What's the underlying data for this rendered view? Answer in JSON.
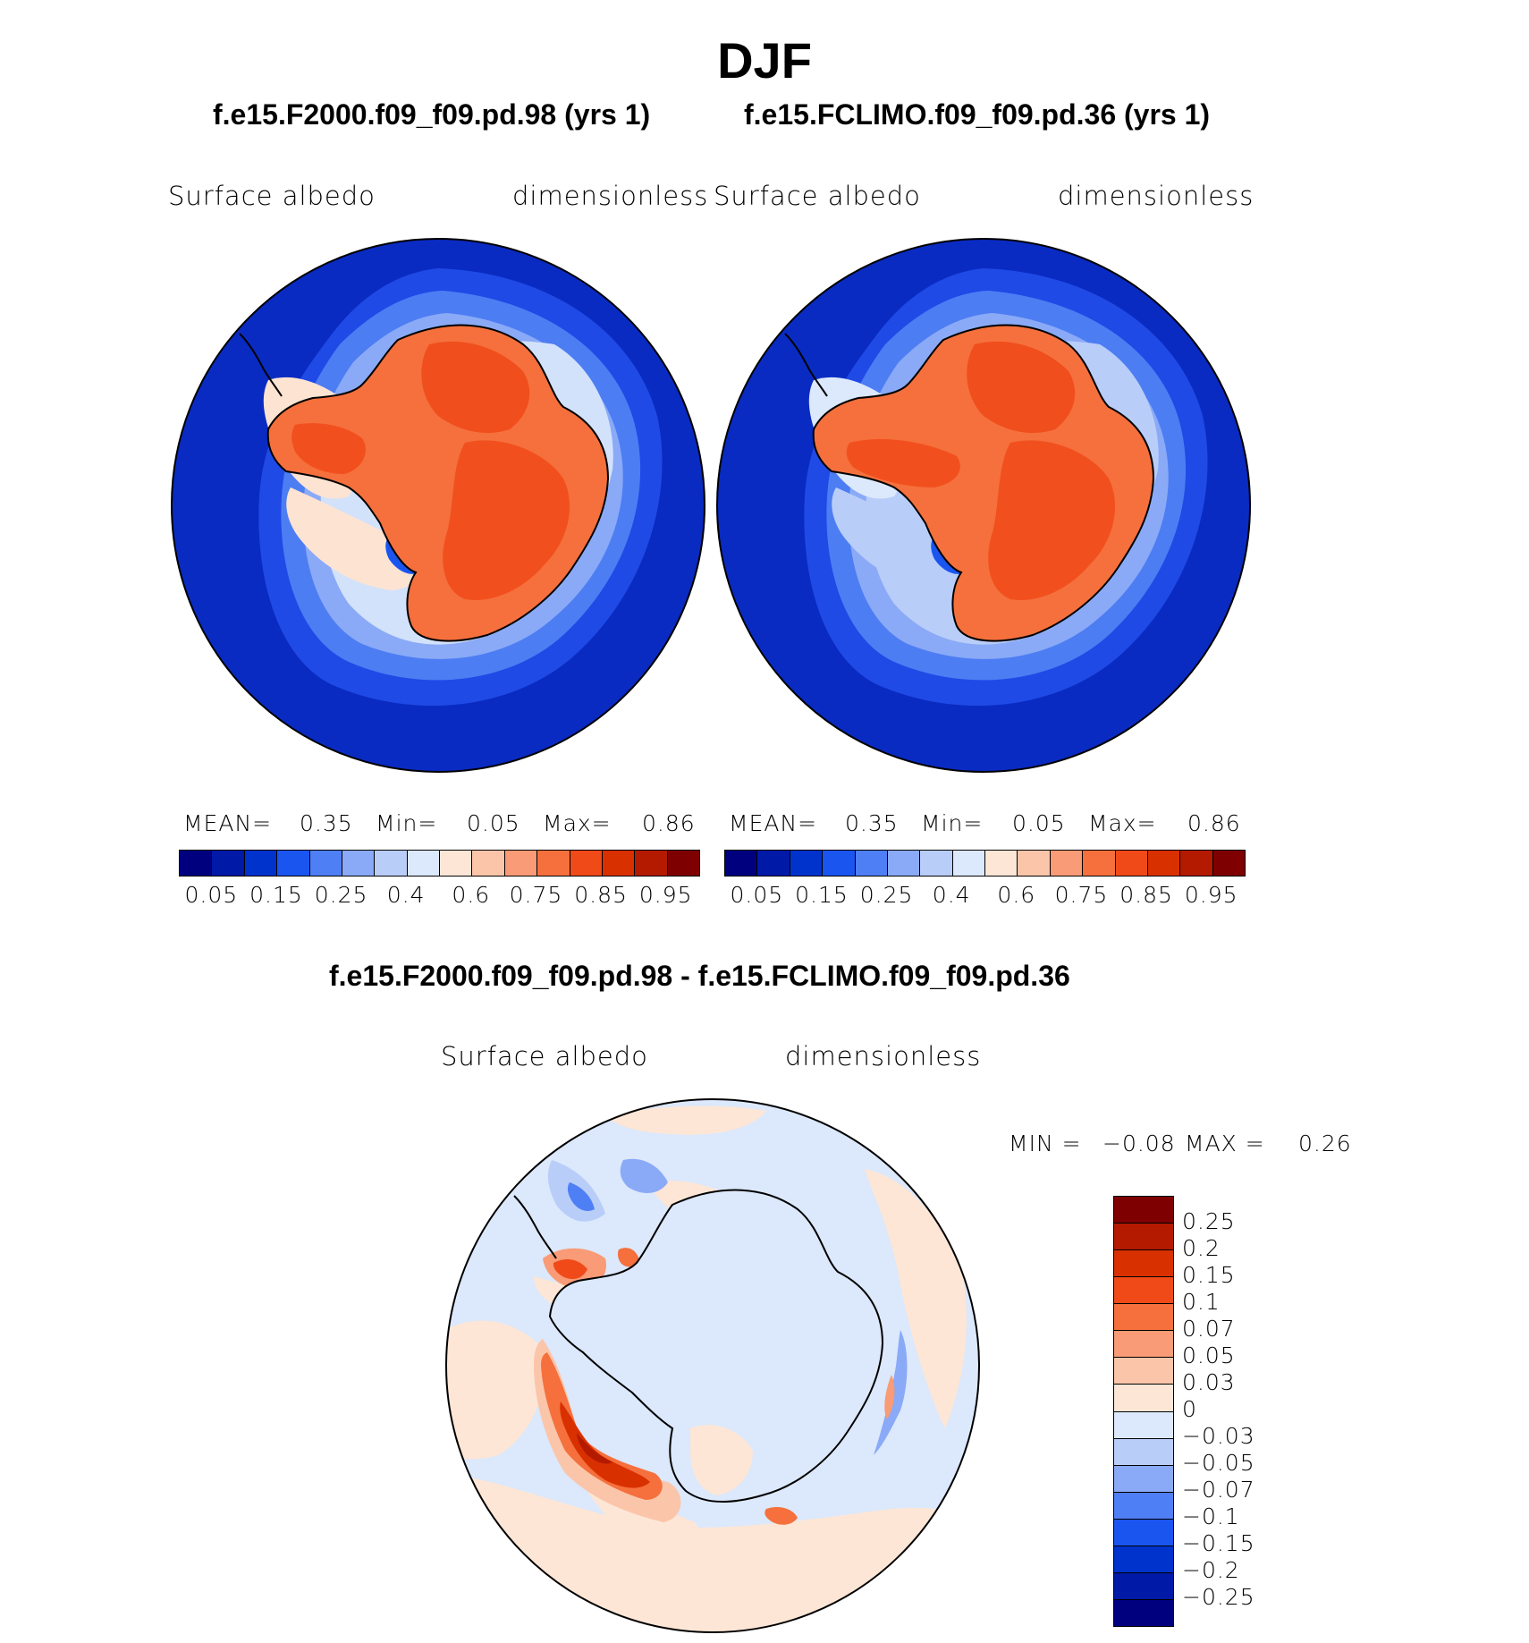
{
  "figure": {
    "season": "DJF",
    "diff_title": "f.e15.F2000.f09_f09.pd.98 - f.e15.FCLIMO.f09_f09.pd.36"
  },
  "panels": [
    {
      "case_title": "f.e15.F2000.f09_f09.pd.98 (yrs 1)",
      "variable": "Surface  albedo",
      "units": "dimensionless",
      "stats": {
        "mean_label": "MEAN=",
        "mean": "0.35",
        "min_label": "Min=",
        "min": "0.05",
        "max_label": "Max=",
        "max": "0.86"
      }
    },
    {
      "case_title": "f.e15.FCLIMO.f09_f09.pd.36 (yrs 1)",
      "variable": "Surface  albedo",
      "units": "dimensionless",
      "stats": {
        "mean_label": "MEAN=",
        "mean": "0.35",
        "min_label": "Min=",
        "min": "0.05",
        "max_label": "Max=",
        "max": "0.86"
      }
    }
  ],
  "diff_panel": {
    "variable": "Surface  albedo",
    "units": "dimensionless",
    "min_label": "MIN =",
    "min": "−0.08",
    "max_label": "MAX =",
    "max": "0.26"
  },
  "colorbar_abs": {
    "colors": [
      "#00007f",
      "#0019a6",
      "#0033cc",
      "#1a55f0",
      "#4f7ff5",
      "#8aaaf7",
      "#b9cdf9",
      "#dce8fb",
      "#fde6d6",
      "#fbc5aa",
      "#f89b76",
      "#f5703d",
      "#f04a19",
      "#d93000",
      "#b41a00",
      "#7e0000"
    ],
    "tick_labels": [
      "0.05",
      "0.15",
      "0.25",
      "0.4",
      "0.6",
      "0.75",
      "0.85",
      "0.95"
    ]
  },
  "colorbar_diff": {
    "colors": [
      "#00007f",
      "#0019a6",
      "#0033cc",
      "#1a55f0",
      "#4f7ff5",
      "#8aaaf7",
      "#b9cdf9",
      "#dce8fb",
      "#fde6d6",
      "#fbc5aa",
      "#f89b76",
      "#f5703d",
      "#f04a19",
      "#d93000",
      "#b41a00",
      "#7e0000"
    ],
    "tick_labels": [
      "0.25",
      "0.2",
      "0.15",
      "0.1",
      "0.07",
      "0.05",
      "0.03",
      "0",
      "−0.03",
      "−0.05",
      "−0.07",
      "−0.1",
      "−0.15",
      "−0.2",
      "−0.25"
    ]
  }
}
